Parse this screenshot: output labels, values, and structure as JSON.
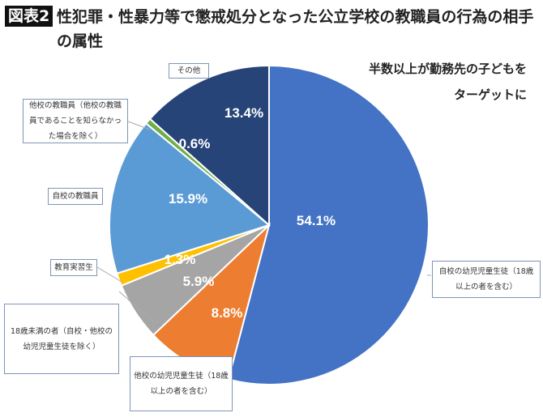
{
  "title": {
    "badge": "図表2",
    "text": "性犯罪・性暴力等で懲戒処分となった公立学校の教職員の行為の相手の属性"
  },
  "annotation": [
    "半数以上が勤務先の子どもを",
    "ターゲットに"
  ],
  "chart_data": {
    "type": "pie",
    "start": "top",
    "direction": "clockwise",
    "slices": [
      {
        "label": "自校の幼児児童生徒（18歳以上の者を含む）",
        "value": 54.1,
        "display": "54.1%",
        "color": "#4472C4"
      },
      {
        "label": "他校の幼児児童生徒（18歳以上の者を含む）",
        "value": 8.8,
        "display": "8.8%",
        "color": "#ED7D31"
      },
      {
        "label": "18歳未満の者（自校・他校の幼児児童生徒を除く）",
        "value": 5.9,
        "display": "5.9%",
        "color": "#A5A5A5"
      },
      {
        "label": "教育実習生",
        "value": 1.3,
        "display": "1.3%",
        "color": "#FFC000"
      },
      {
        "label": "自校の教職員",
        "value": 15.9,
        "display": "15.9%",
        "color": "#5B9BD5"
      },
      {
        "label": "他校の教職員（他校の教職員であることを知らなかった場合を除く）",
        "value": 0.6,
        "display": "0.6%",
        "color": "#70AD47"
      },
      {
        "label": "その他",
        "value": 13.4,
        "display": "13.4%",
        "color": "#264478"
      }
    ]
  }
}
